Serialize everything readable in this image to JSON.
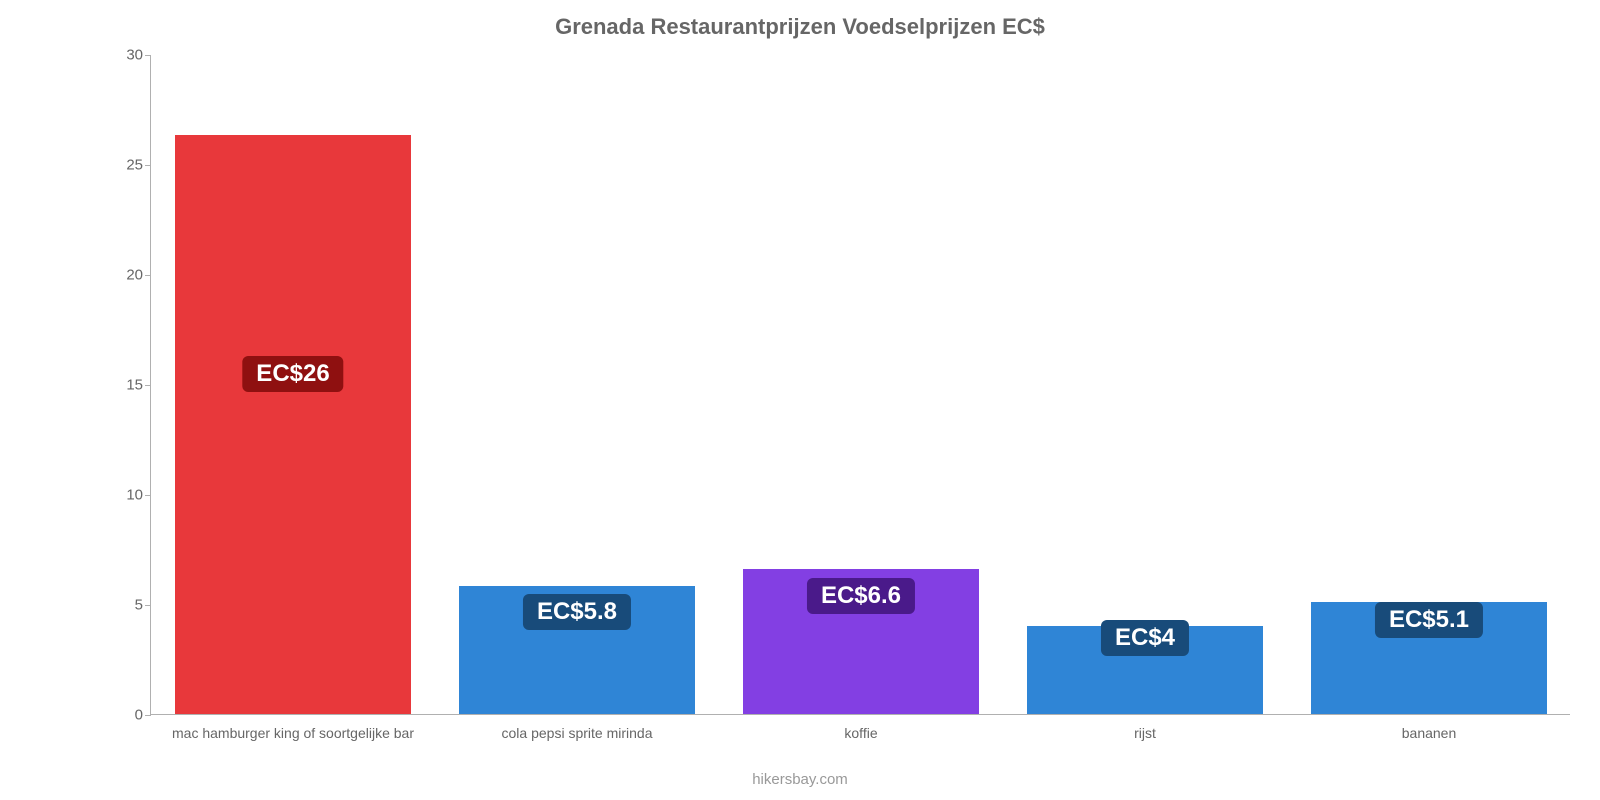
{
  "chart": {
    "type": "bar",
    "title": "Grenada Restaurantprijzen Voedselprijzen EC$",
    "title_fontsize": 22,
    "title_color": "#666666",
    "background_color": "#ffffff",
    "axis_color": "#b0b0b0",
    "tick_color": "#666666",
    "tick_fontsize": 15,
    "xlabel_fontsize": 14,
    "ylim": [
      0,
      30
    ],
    "ytick_step": 5,
    "yticks": [
      0,
      5,
      10,
      15,
      20,
      25,
      30
    ],
    "bar_width": 0.83,
    "categories": [
      "mac hamburger king of soortgelijke bar",
      "cola pepsi sprite mirinda",
      "koffie",
      "rijst",
      "bananen"
    ],
    "values": [
      26.3,
      5.8,
      6.6,
      4.0,
      5.1
    ],
    "value_labels": [
      "EC$26",
      "EC$5.8",
      "EC$6.6",
      "EC$4",
      "EC$5.1"
    ],
    "bar_colors": [
      "#e8383b",
      "#2f85d6",
      "#833fe3",
      "#2f85d6",
      "#2f85d6"
    ],
    "badge_colors": [
      "#8f1010",
      "#184b7a",
      "#4a1a8a",
      "#184b7a",
      "#184b7a"
    ],
    "badge_fontsize": 24,
    "badge_y_values": [
      15.5,
      4.7,
      5.4,
      3.5,
      4.3
    ],
    "attribution": "hikersbay.com",
    "attribution_color": "#999999",
    "attribution_fontsize": 15
  }
}
